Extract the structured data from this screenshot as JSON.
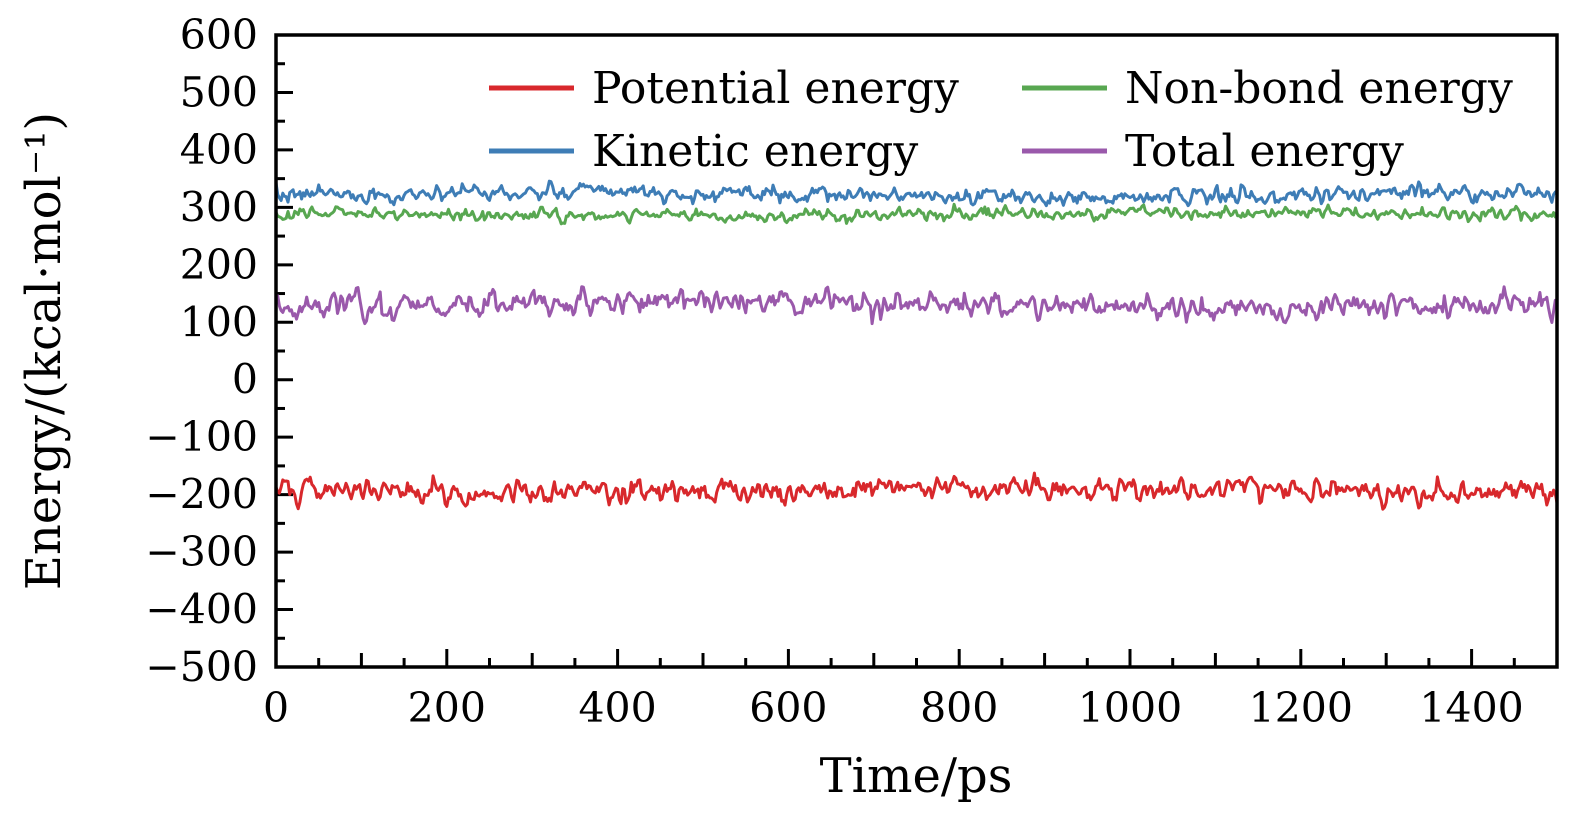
{
  "chart_data": {
    "type": "line",
    "title": "",
    "xlabel": "Time/ps",
    "ylabel": "Energy/(kcal·mol⁻¹)",
    "xlim": [
      0,
      1500
    ],
    "ylim": [
      -500,
      600
    ],
    "x_major_ticks": [
      0,
      200,
      400,
      600,
      800,
      1000,
      1200,
      1400
    ],
    "x_medium_tick_step": 100,
    "x_minor_tick_step": 50,
    "y_major_ticks": [
      -500,
      -400,
      -300,
      -200,
      -100,
      0,
      100,
      200,
      300,
      400,
      500,
      600
    ],
    "y_minor_tick_step": 50,
    "grid": false,
    "frame": "full-box",
    "tick_direction": "in",
    "legend_position": "top-center-inside, 2 columns, no frame",
    "legend_order": [
      "Potential energy",
      "Non-bond energy",
      "Kinetic energy",
      "Total energy"
    ],
    "series_note": "stationary noisy molecular-dynamics traces, ~0-1500 ps; values read from axis: mean ± fluctuation",
    "series": [
      {
        "name": "Potential energy",
        "color": "#d8282c",
        "mean": -191,
        "std": 11,
        "min": -228,
        "max": -158,
        "points": 751,
        "seed": 101
      },
      {
        "name": "Kinetic energy",
        "color": "#3e7db6",
        "mean": 322,
        "std": 7.5,
        "min": 303,
        "max": 345,
        "points": 751,
        "seed": 202
      },
      {
        "name": "Non-bond energy",
        "color": "#58a751",
        "mean": 288,
        "std": 5.5,
        "min": 274,
        "max": 303,
        "points": 751,
        "seed": 303
      },
      {
        "name": "Total energy",
        "color": "#9a59ab",
        "mean": 131,
        "std": 12,
        "min": 98,
        "max": 168,
        "points": 751,
        "seed": 404
      }
    ],
    "axis_color": "#000000",
    "background_color": "#ffffff"
  }
}
